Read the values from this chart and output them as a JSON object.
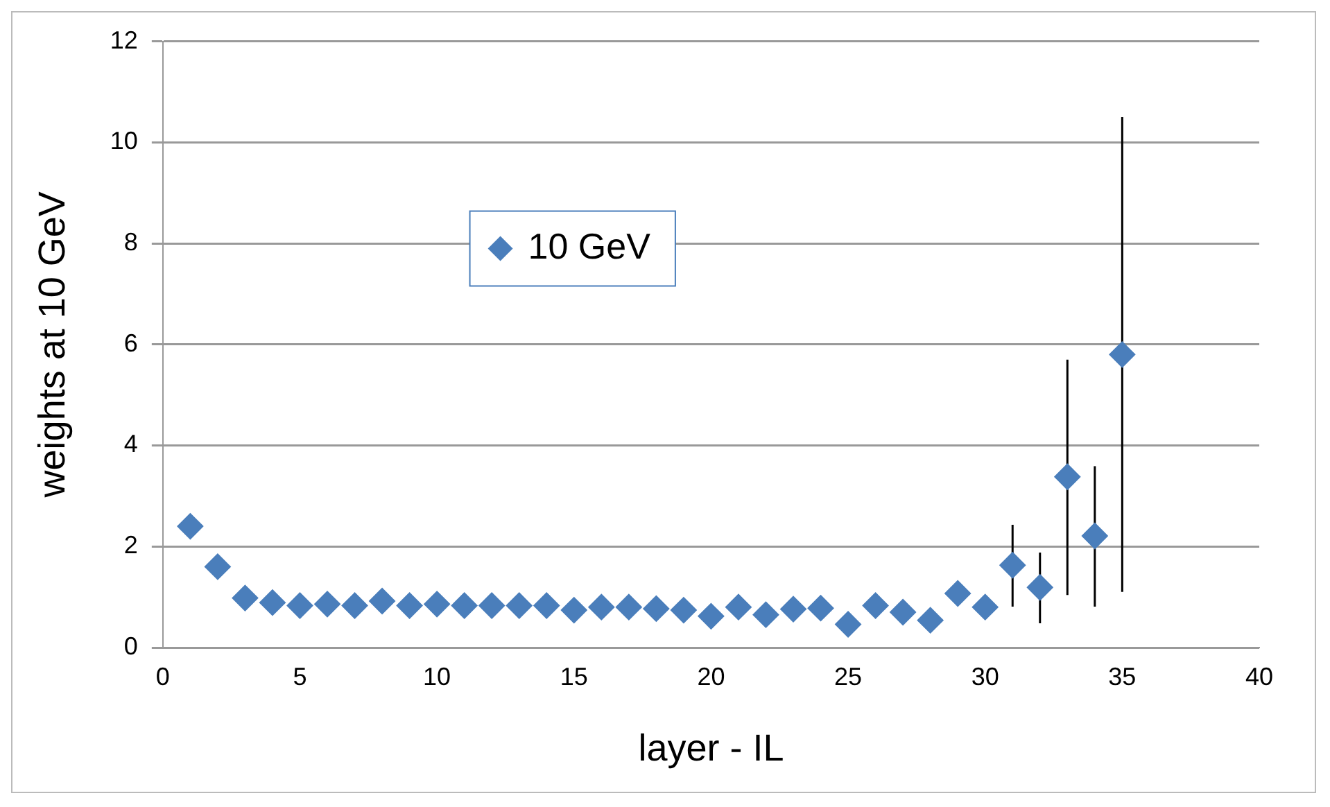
{
  "chart_data": {
    "type": "scatter",
    "xlabel": "layer - IL",
    "ylabel": "weights at 10 GeV",
    "x": [
      1,
      2,
      3,
      4,
      5,
      6,
      7,
      8,
      9,
      10,
      11,
      12,
      13,
      14,
      15,
      16,
      17,
      18,
      19,
      20,
      21,
      22,
      23,
      24,
      25,
      26,
      27,
      28,
      29,
      30,
      31,
      32,
      33,
      34,
      35
    ],
    "series": [
      {
        "name": "10 GeV",
        "color": "#4a7ebb",
        "values": [
          2.4,
          1.6,
          0.98,
          0.89,
          0.83,
          0.86,
          0.83,
          0.92,
          0.83,
          0.86,
          0.83,
          0.83,
          0.83,
          0.83,
          0.74,
          0.8,
          0.8,
          0.77,
          0.74,
          0.62,
          0.8,
          0.65,
          0.76,
          0.78,
          0.46,
          0.83,
          0.7,
          0.54,
          1.07,
          0.8,
          1.63,
          1.19,
          3.38,
          2.21,
          5.8
        ],
        "errors": [
          null,
          null,
          null,
          null,
          null,
          null,
          null,
          null,
          null,
          null,
          null,
          null,
          null,
          null,
          null,
          null,
          null,
          null,
          null,
          null,
          null,
          null,
          null,
          null,
          null,
          null,
          null,
          null,
          null,
          null,
          [
            0.81,
            2.43
          ],
          [
            0.48,
            1.88
          ],
          [
            1.04,
            5.7
          ],
          [
            0.81,
            3.59
          ],
          [
            1.1,
            10.5
          ]
        ]
      }
    ],
    "xlim": [
      0,
      40
    ],
    "xticks": [
      0,
      5,
      10,
      15,
      20,
      25,
      30,
      35,
      40
    ],
    "ylim": [
      0,
      12
    ],
    "yticks": [
      0,
      2,
      4,
      6,
      8,
      10,
      12
    ],
    "grid": "y",
    "legend": "top left",
    "marker": "diamond"
  }
}
